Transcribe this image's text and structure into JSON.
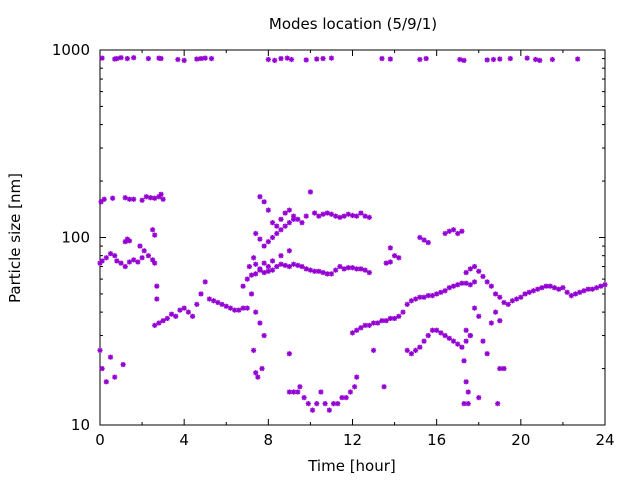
{
  "chart_data": {
    "type": "scatter",
    "title": "Modes location (5/9/1)",
    "xlabel": "Time [hour]",
    "ylabel": "Particle size [nm]",
    "xlim": [
      0,
      24
    ],
    "ylim": [
      10,
      1000
    ],
    "yscale": "log",
    "grid": false,
    "legend": "none",
    "color": "#9400d3",
    "x_ticks": [
      0,
      4,
      8,
      12,
      16,
      20,
      24
    ],
    "x_tick_labels": [
      "0",
      "4",
      "8",
      "12",
      "16",
      "20",
      "24"
    ],
    "y_ticks": [
      10,
      100,
      1000
    ],
    "y_tick_labels": [
      "10",
      "100",
      "1000"
    ],
    "series": [
      {
        "points": [
          [
            0.1,
            905
          ],
          [
            0.7,
            895
          ],
          [
            0.8,
            900
          ],
          [
            1.0,
            910
          ],
          [
            1.3,
            900
          ],
          [
            1.6,
            910
          ],
          [
            2.3,
            900
          ],
          [
            2.8,
            905
          ],
          [
            2.9,
            900
          ],
          [
            3.7,
            890
          ],
          [
            4.0,
            880
          ],
          [
            4.6,
            895
          ],
          [
            4.8,
            900
          ],
          [
            5.0,
            905
          ],
          [
            5.3,
            900
          ],
          [
            8.0,
            890
          ],
          [
            8.3,
            880
          ],
          [
            8.6,
            900
          ],
          [
            8.9,
            905
          ],
          [
            9.1,
            890
          ],
          [
            9.8,
            885
          ],
          [
            10.3,
            895
          ],
          [
            10.6,
            900
          ],
          [
            11.0,
            905
          ],
          [
            13.4,
            900
          ],
          [
            13.8,
            895
          ],
          [
            15.2,
            890
          ],
          [
            15.5,
            900
          ],
          [
            17.1,
            890
          ],
          [
            17.3,
            880
          ],
          [
            18.4,
            885
          ],
          [
            18.7,
            890
          ],
          [
            19.0,
            895
          ],
          [
            19.5,
            900
          ],
          [
            20.3,
            905
          ],
          [
            20.7,
            890
          ],
          [
            20.9,
            880
          ],
          [
            21.5,
            890
          ],
          [
            22.7,
            895
          ],
          [
            0.05,
            155
          ],
          [
            0.2,
            160
          ],
          [
            0.6,
            162
          ],
          [
            1.2,
            163
          ],
          [
            1.4,
            160
          ],
          [
            1.6,
            160
          ],
          [
            2.0,
            158
          ],
          [
            2.2,
            165
          ],
          [
            2.4,
            163
          ],
          [
            2.6,
            162
          ],
          [
            2.8,
            165
          ],
          [
            2.9,
            170
          ],
          [
            3.0,
            160
          ],
          [
            2.5,
            110
          ],
          [
            2.6,
            103
          ],
          [
            1.2,
            95
          ],
          [
            1.3,
            98
          ],
          [
            1.4,
            96
          ],
          [
            1.9,
            90
          ],
          [
            2.1,
            85
          ],
          [
            0.0,
            73
          ],
          [
            0.1,
            75
          ],
          [
            0.3,
            78
          ],
          [
            0.5,
            82
          ],
          [
            0.7,
            80
          ],
          [
            0.8,
            75
          ],
          [
            1.0,
            73
          ],
          [
            1.2,
            70
          ],
          [
            1.4,
            74
          ],
          [
            1.6,
            76
          ],
          [
            1.8,
            74
          ],
          [
            2.0,
            78
          ],
          [
            2.3,
            80
          ],
          [
            2.5,
            76
          ],
          [
            2.6,
            73
          ],
          [
            2.7,
            55
          ],
          [
            2.7,
            47
          ],
          [
            2.6,
            34
          ],
          [
            2.8,
            35
          ],
          [
            3.0,
            36
          ],
          [
            3.2,
            37
          ],
          [
            3.4,
            39
          ],
          [
            3.6,
            38
          ],
          [
            3.8,
            41
          ],
          [
            4.0,
            42
          ],
          [
            4.2,
            40
          ],
          [
            4.4,
            38
          ],
          [
            4.6,
            44
          ],
          [
            4.8,
            50
          ],
          [
            5.0,
            58
          ],
          [
            5.2,
            47
          ],
          [
            5.4,
            46
          ],
          [
            5.6,
            45
          ],
          [
            5.8,
            44
          ],
          [
            6.0,
            43
          ],
          [
            6.2,
            42
          ],
          [
            6.4,
            41
          ],
          [
            6.6,
            41
          ],
          [
            6.8,
            42
          ],
          [
            7.0,
            42
          ],
          [
            0.0,
            25
          ],
          [
            0.1,
            20
          ],
          [
            0.3,
            17
          ],
          [
            0.5,
            23
          ],
          [
            0.7,
            18
          ],
          [
            1.1,
            21
          ],
          [
            6.8,
            55
          ],
          [
            7.0,
            60
          ],
          [
            7.2,
            63
          ],
          [
            7.4,
            64
          ],
          [
            7.6,
            67
          ],
          [
            7.8,
            65
          ],
          [
            8.0,
            66
          ],
          [
            8.2,
            67
          ],
          [
            8.4,
            70
          ],
          [
            8.6,
            72
          ],
          [
            8.8,
            71
          ],
          [
            9.0,
            70
          ],
          [
            9.2,
            72
          ],
          [
            9.4,
            71
          ],
          [
            9.6,
            70
          ],
          [
            9.8,
            68
          ],
          [
            10.0,
            67
          ],
          [
            10.2,
            66
          ],
          [
            10.4,
            66
          ],
          [
            10.6,
            65
          ],
          [
            10.8,
            64
          ],
          [
            11.0,
            64
          ],
          [
            11.2,
            67
          ],
          [
            11.4,
            70
          ],
          [
            11.6,
            68
          ],
          [
            11.8,
            69
          ],
          [
            12.0,
            69
          ],
          [
            12.2,
            68
          ],
          [
            12.4,
            68
          ],
          [
            12.6,
            67
          ],
          [
            12.8,
            65
          ],
          [
            7.3,
            78
          ],
          [
            7.4,
            72
          ],
          [
            7.6,
            68
          ],
          [
            7.8,
            73
          ],
          [
            8.0,
            70
          ],
          [
            8.2,
            75
          ],
          [
            8.6,
            80
          ],
          [
            9.0,
            85
          ],
          [
            7.6,
            165
          ],
          [
            7.8,
            155
          ],
          [
            8.0,
            140
          ],
          [
            8.2,
            120
          ],
          [
            8.4,
            115
          ],
          [
            8.6,
            125
          ],
          [
            8.8,
            135
          ],
          [
            9.0,
            140
          ],
          [
            9.2,
            130
          ],
          [
            9.4,
            125
          ],
          [
            9.6,
            120
          ],
          [
            9.8,
            130
          ],
          [
            10.0,
            175
          ],
          [
            10.2,
            135
          ],
          [
            10.4,
            130
          ],
          [
            10.6,
            133
          ],
          [
            10.8,
            135
          ],
          [
            11.0,
            133
          ],
          [
            11.2,
            130
          ],
          [
            11.4,
            128
          ],
          [
            11.6,
            130
          ],
          [
            11.8,
            133
          ],
          [
            12.0,
            131
          ],
          [
            12.2,
            130
          ],
          [
            12.4,
            135
          ],
          [
            12.6,
            130
          ],
          [
            12.8,
            128
          ],
          [
            7.4,
            105
          ],
          [
            7.6,
            98
          ],
          [
            7.8,
            90
          ],
          [
            8.0,
            95
          ],
          [
            8.2,
            100
          ],
          [
            8.4,
            105
          ],
          [
            8.6,
            110
          ],
          [
            8.8,
            115
          ],
          [
            9.0,
            120
          ],
          [
            9.2,
            125
          ],
          [
            7.1,
            70
          ],
          [
            7.2,
            50
          ],
          [
            7.4,
            40
          ],
          [
            7.6,
            35
          ],
          [
            7.8,
            30
          ],
          [
            7.4,
            19
          ],
          [
            7.5,
            18
          ],
          [
            7.7,
            20
          ],
          [
            7.3,
            25
          ],
          [
            9.0,
            24
          ],
          [
            9.0,
            15
          ],
          [
            9.2,
            15
          ],
          [
            9.4,
            15
          ],
          [
            9.5,
            16
          ],
          [
            9.7,
            14
          ],
          [
            9.9,
            13
          ],
          [
            10.1,
            12
          ],
          [
            10.3,
            13
          ],
          [
            10.5,
            15
          ],
          [
            10.7,
            13
          ],
          [
            10.9,
            12
          ],
          [
            11.1,
            13
          ],
          [
            11.3,
            13
          ],
          [
            11.5,
            14
          ],
          [
            11.7,
            14
          ],
          [
            11.9,
            15
          ],
          [
            12.1,
            16
          ],
          [
            12.2,
            18
          ],
          [
            12.0,
            31
          ],
          [
            12.2,
            32
          ],
          [
            12.4,
            33
          ],
          [
            12.6,
            34
          ],
          [
            12.8,
            34
          ],
          [
            13.0,
            35
          ],
          [
            13.2,
            35
          ],
          [
            13.4,
            36
          ],
          [
            13.6,
            36
          ],
          [
            13.8,
            37
          ],
          [
            14.0,
            37
          ],
          [
            14.2,
            38
          ],
          [
            14.4,
            40
          ],
          [
            14.6,
            44
          ],
          [
            14.8,
            46
          ],
          [
            15.0,
            47
          ],
          [
            15.2,
            48
          ],
          [
            15.4,
            48
          ],
          [
            15.6,
            49
          ],
          [
            15.8,
            49
          ],
          [
            16.0,
            50
          ],
          [
            16.2,
            51
          ],
          [
            16.4,
            52
          ],
          [
            16.6,
            54
          ],
          [
            16.8,
            55
          ],
          [
            17.0,
            56
          ],
          [
            17.2,
            57
          ],
          [
            17.4,
            57
          ],
          [
            17.6,
            56
          ],
          [
            17.8,
            58
          ],
          [
            13.0,
            25
          ],
          [
            13.5,
            16
          ],
          [
            13.8,
            88
          ],
          [
            14.0,
            80
          ],
          [
            14.2,
            78
          ],
          [
            13.6,
            73
          ],
          [
            13.8,
            74
          ],
          [
            15.2,
            100
          ],
          [
            15.4,
            97
          ],
          [
            15.6,
            94
          ],
          [
            14.6,
            25
          ],
          [
            14.8,
            24
          ],
          [
            15.0,
            25
          ],
          [
            15.2,
            26
          ],
          [
            15.4,
            28
          ],
          [
            15.6,
            30
          ],
          [
            15.8,
            32
          ],
          [
            16.0,
            32
          ],
          [
            16.2,
            31
          ],
          [
            16.4,
            30
          ],
          [
            16.6,
            29
          ],
          [
            16.8,
            28
          ],
          [
            17.0,
            27
          ],
          [
            17.2,
            26
          ],
          [
            17.4,
            28
          ],
          [
            17.6,
            30
          ],
          [
            16.4,
            105
          ],
          [
            16.6,
            108
          ],
          [
            16.8,
            110
          ],
          [
            17.0,
            105
          ],
          [
            17.2,
            108
          ],
          [
            17.4,
            65
          ],
          [
            17.6,
            68
          ],
          [
            17.8,
            70
          ],
          [
            18.0,
            66
          ],
          [
            18.2,
            62
          ],
          [
            18.4,
            58
          ],
          [
            18.6,
            55
          ],
          [
            18.8,
            50
          ],
          [
            19.0,
            48
          ],
          [
            17.4,
            32
          ],
          [
            17.6,
            30
          ],
          [
            17.8,
            42
          ],
          [
            18.0,
            38
          ],
          [
            18.2,
            28
          ],
          [
            18.4,
            24
          ],
          [
            18.6,
            35
          ],
          [
            18.8,
            40
          ],
          [
            19.0,
            36
          ],
          [
            17.3,
            22
          ],
          [
            17.4,
            17
          ],
          [
            17.5,
            15
          ],
          [
            17.3,
            13
          ],
          [
            17.5,
            13
          ],
          [
            18.0,
            14
          ],
          [
            18.9,
            13
          ],
          [
            19.0,
            20
          ],
          [
            19.2,
            20
          ],
          [
            19.2,
            45
          ],
          [
            19.4,
            44
          ],
          [
            19.6,
            46
          ],
          [
            19.8,
            47
          ],
          [
            20.0,
            48
          ],
          [
            20.2,
            50
          ],
          [
            20.4,
            51
          ],
          [
            20.6,
            52
          ],
          [
            20.8,
            53
          ],
          [
            21.0,
            54
          ],
          [
            21.2,
            55
          ],
          [
            21.4,
            55
          ],
          [
            21.6,
            54
          ],
          [
            21.8,
            53
          ],
          [
            22.0,
            54
          ],
          [
            22.2,
            51
          ],
          [
            22.4,
            49
          ],
          [
            22.6,
            50
          ],
          [
            22.8,
            51
          ],
          [
            23.0,
            52
          ],
          [
            23.2,
            53
          ],
          [
            23.4,
            53
          ],
          [
            23.6,
            54
          ],
          [
            23.8,
            55
          ],
          [
            24.0,
            56
          ]
        ]
      }
    ]
  }
}
